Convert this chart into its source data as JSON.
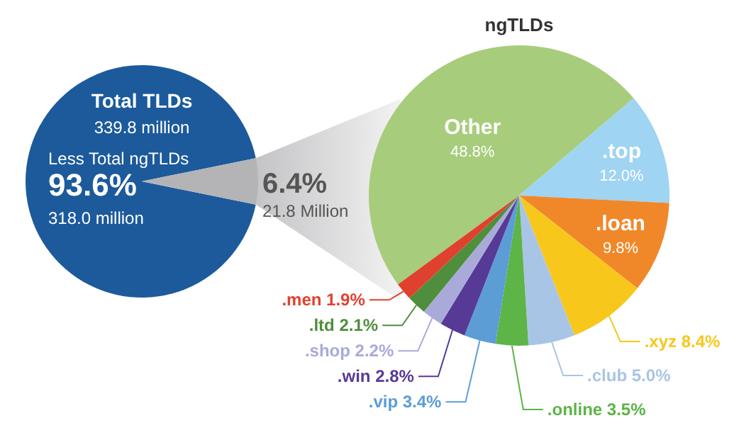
{
  "chart_data": [
    {
      "type": "pie",
      "title": "Total TLDs",
      "subtitle": "339.8 million",
      "categories": [
        "Less Total ngTLDs",
        null
      ],
      "values": [
        93.6,
        6.4
      ],
      "colors": [
        "#1c5a9c",
        "#b4b4b6"
      ],
      "value_labels": [
        "93.6%",
        "6.4%"
      ],
      "annotations": [
        "318.0 million",
        "21.8 Million"
      ]
    },
    {
      "type": "pie",
      "title": "ngTLDs",
      "categories": [
        "Other",
        ".top",
        ".loan",
        ".xyz",
        ".club",
        ".online",
        ".vip",
        ".win",
        ".shop",
        ".ltd",
        ".men"
      ],
      "values": [
        48.8,
        12.0,
        9.8,
        8.4,
        5.0,
        3.5,
        3.4,
        2.8,
        2.2,
        2.1,
        1.9
      ],
      "colors": [
        "#a7cd7c",
        "#9fd4f2",
        "#f0882a",
        "#f8c71c",
        "#a9c5e5",
        "#5db447",
        "#5c9dd6",
        "#573a96",
        "#a9aad9",
        "#4f8e3c",
        "#e0412f"
      ],
      "value_labels": [
        "48.8%",
        "12.0%",
        "9.8%",
        "8.4%",
        "5.0%",
        "3.5%",
        "3.4%",
        "2.8%",
        "2.2%",
        "2.1%",
        "1.9%"
      ]
    }
  ]
}
